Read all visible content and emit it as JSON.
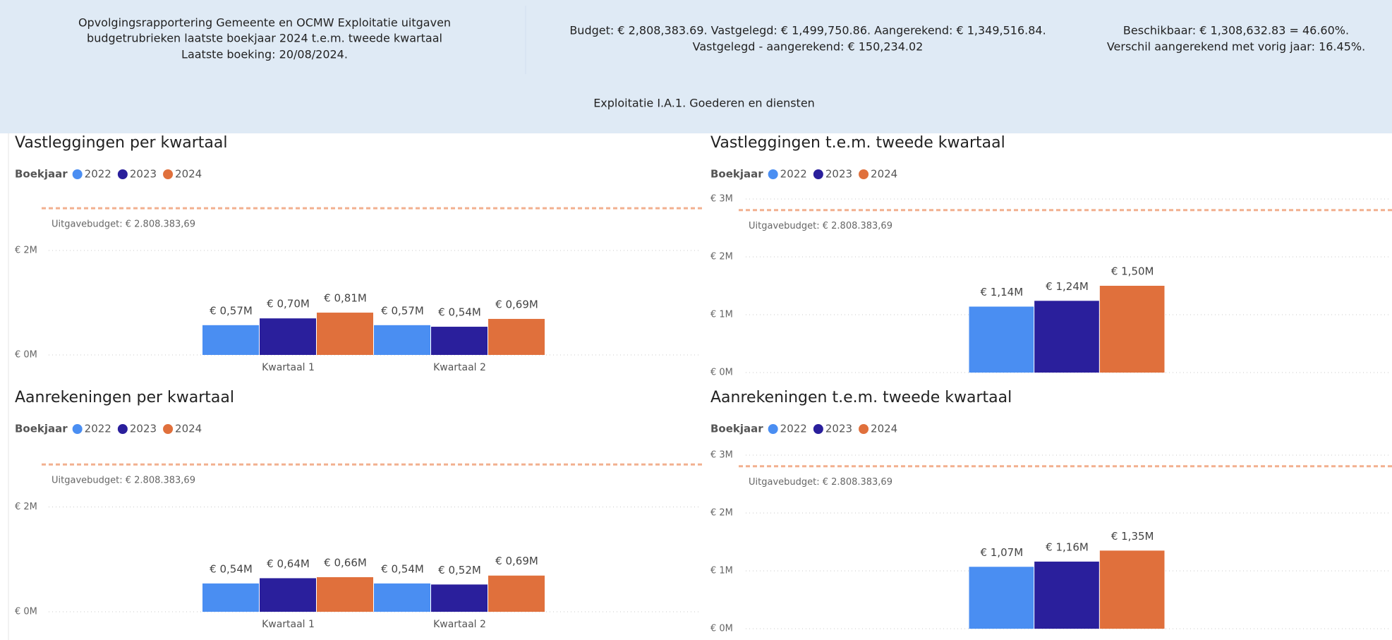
{
  "header": {
    "title_lines": [
      "Opvolgingsrapportering Gemeente en OCMW Exploitatie uitgaven",
      "budgetrubrieken laatste boekjaar 2024 t.e.m. tweede kwartaal",
      "Laatste boeking: 20/08/2024."
    ],
    "summary_lines": [
      "Budget: € 2,808,383.69. Vastgelegd: € 1,499,750.86. Aangerekend: € 1,349,516.84.",
      "Vastgelegd - aangerekend: € 150,234.02"
    ],
    "available_lines": [
      "Beschikbaar: € 1,308,632.83 = 46.60%.",
      "Verschil aangerekend met vorig jaar: 16.45%."
    ],
    "subtitle": "Exploitatie I.A.1. Goederen en diensten"
  },
  "chart_data": [
    {
      "type": "bar",
      "title": "Vastleggingen per kwartaal",
      "legend_title": "Boekjaar",
      "categories": [
        "Kwartaal 1",
        "Kwartaal 2"
      ],
      "series": [
        {
          "name": "2022",
          "color": "#4a8ef2",
          "values": [
            0.57,
            0.57
          ],
          "value_labels": [
            "€ 0,57M",
            "€ 0,57M"
          ]
        },
        {
          "name": "2023",
          "color": "#2a1f9c",
          "values": [
            0.7,
            0.54
          ],
          "value_labels": [
            "€ 0,70M",
            "€ 0,54M"
          ]
        },
        {
          "name": "2024",
          "color": "#e0703c",
          "values": [
            0.81,
            0.69
          ],
          "value_labels": [
            "€ 0,81M",
            "€ 0,69M"
          ]
        }
      ],
      "ylim": [
        0,
        3
      ],
      "yticks": [
        {
          "value": 0,
          "label": "€ 0M"
        },
        {
          "value": 2,
          "label": "€ 2M"
        }
      ],
      "grid": true,
      "reference_line": {
        "value": 2.80838369,
        "label": "Uitgavebudget: € 2.808.383,69",
        "color": "#f2b08f"
      }
    },
    {
      "type": "bar",
      "title": "Vastleggingen t.e.m. tweede kwartaal",
      "legend_title": "Boekjaar",
      "categories": [
        null
      ],
      "series": [
        {
          "name": "2022",
          "color": "#4a8ef2",
          "values": [
            1.14
          ],
          "value_labels": [
            "€ 1,14M"
          ]
        },
        {
          "name": "2023",
          "color": "#2a1f9c",
          "values": [
            1.24
          ],
          "value_labels": [
            "€ 1,24M"
          ]
        },
        {
          "name": "2024",
          "color": "#e0703c",
          "values": [
            1.5
          ],
          "value_labels": [
            "€ 1,50M"
          ]
        }
      ],
      "ylim": [
        0,
        3
      ],
      "yticks": [
        {
          "value": 0,
          "label": "€ 0M"
        },
        {
          "value": 1,
          "label": "€ 1M"
        },
        {
          "value": 2,
          "label": "€ 2M"
        },
        {
          "value": 3,
          "label": "€ 3M"
        }
      ],
      "grid": true,
      "reference_line": {
        "value": 2.80838369,
        "label": "Uitgavebudget: € 2.808.383,69",
        "color": "#f2b08f"
      }
    },
    {
      "type": "bar",
      "title": "Aanrekeningen per kwartaal",
      "legend_title": "Boekjaar",
      "categories": [
        "Kwartaal 1",
        "Kwartaal 2"
      ],
      "series": [
        {
          "name": "2022",
          "color": "#4a8ef2",
          "values": [
            0.54,
            0.54
          ],
          "value_labels": [
            "€ 0,54M",
            "€ 0,54M"
          ]
        },
        {
          "name": "2023",
          "color": "#2a1f9c",
          "values": [
            0.64,
            0.52
          ],
          "value_labels": [
            "€ 0,64M",
            "€ 0,52M"
          ]
        },
        {
          "name": "2024",
          "color": "#e0703c",
          "values": [
            0.66,
            0.69
          ],
          "value_labels": [
            "€ 0,66M",
            "€ 0,69M"
          ]
        }
      ],
      "ylim": [
        0,
        3
      ],
      "yticks": [
        {
          "value": 0,
          "label": "€ 0M"
        },
        {
          "value": 2,
          "label": "€ 2M"
        }
      ],
      "grid": true,
      "reference_line": {
        "value": 2.80838369,
        "label": "Uitgavebudget: € 2.808.383,69",
        "color": "#f2b08f"
      }
    },
    {
      "type": "bar",
      "title": "Aanrekeningen t.e.m. tweede kwartaal",
      "legend_title": "Boekjaar",
      "categories": [
        null
      ],
      "series": [
        {
          "name": "2022",
          "color": "#4a8ef2",
          "values": [
            1.07
          ],
          "value_labels": [
            "€ 1,07M"
          ]
        },
        {
          "name": "2023",
          "color": "#2a1f9c",
          "values": [
            1.16
          ],
          "value_labels": [
            "€ 1,16M"
          ]
        },
        {
          "name": "2024",
          "color": "#e0703c",
          "values": [
            1.35
          ],
          "value_labels": [
            "€ 1,35M"
          ]
        }
      ],
      "ylim": [
        0,
        3
      ],
      "yticks": [
        {
          "value": 0,
          "label": "€ 0M"
        },
        {
          "value": 1,
          "label": "€ 1M"
        },
        {
          "value": 2,
          "label": "€ 2M"
        },
        {
          "value": 3,
          "label": "€ 3M"
        }
      ],
      "grid": true,
      "reference_line": {
        "value": 2.80838369,
        "label": "Uitgavebudget: € 2.808.383,69",
        "color": "#f2b08f"
      }
    }
  ]
}
